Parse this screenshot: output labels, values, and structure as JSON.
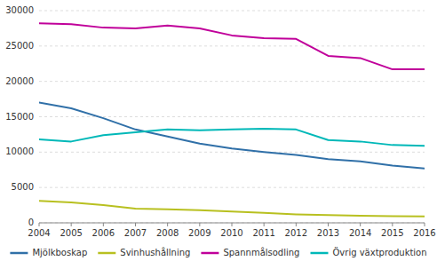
{
  "chart_data": {
    "type": "line",
    "x": [
      2004,
      2005,
      2006,
      2007,
      2008,
      2009,
      2010,
      2011,
      2012,
      2013,
      2014,
      2015,
      2016
    ],
    "series": [
      {
        "name": "Mjölkboskap",
        "color": "#3070a8",
        "values": [
          17000,
          16200,
          14800,
          13200,
          12200,
          11200,
          10500,
          10000,
          9600,
          9000,
          8700,
          8100,
          7700
        ]
      },
      {
        "name": "Svinhushållning",
        "color": "#b8c020",
        "values": [
          3100,
          2900,
          2500,
          2000,
          1900,
          1800,
          1600,
          1400,
          1200,
          1100,
          1000,
          950,
          900
        ]
      },
      {
        "name": "Spannmålsodling",
        "color": "#c0009a",
        "values": [
          28200,
          28100,
          27600,
          27500,
          27900,
          27500,
          26500,
          26100,
          26000,
          23600,
          23300,
          21700,
          21700
        ]
      },
      {
        "name": "Övrig växtproduktion",
        "color": "#00b8b8",
        "values": [
          11800,
          11500,
          12400,
          12800,
          13200,
          13100,
          13200,
          13300,
          13200,
          11700,
          11500,
          11000,
          10900
        ]
      }
    ],
    "xlim": [
      2004,
      2016
    ],
    "xticks": [
      2004,
      2005,
      2006,
      2007,
      2008,
      2009,
      2010,
      2011,
      2012,
      2013,
      2014,
      2015,
      2016
    ],
    "ylim": [
      0,
      30000
    ],
    "yticks": [
      0,
      5000,
      10000,
      15000,
      20000,
      25000,
      30000
    ],
    "grid": true,
    "legend": "bottom"
  }
}
